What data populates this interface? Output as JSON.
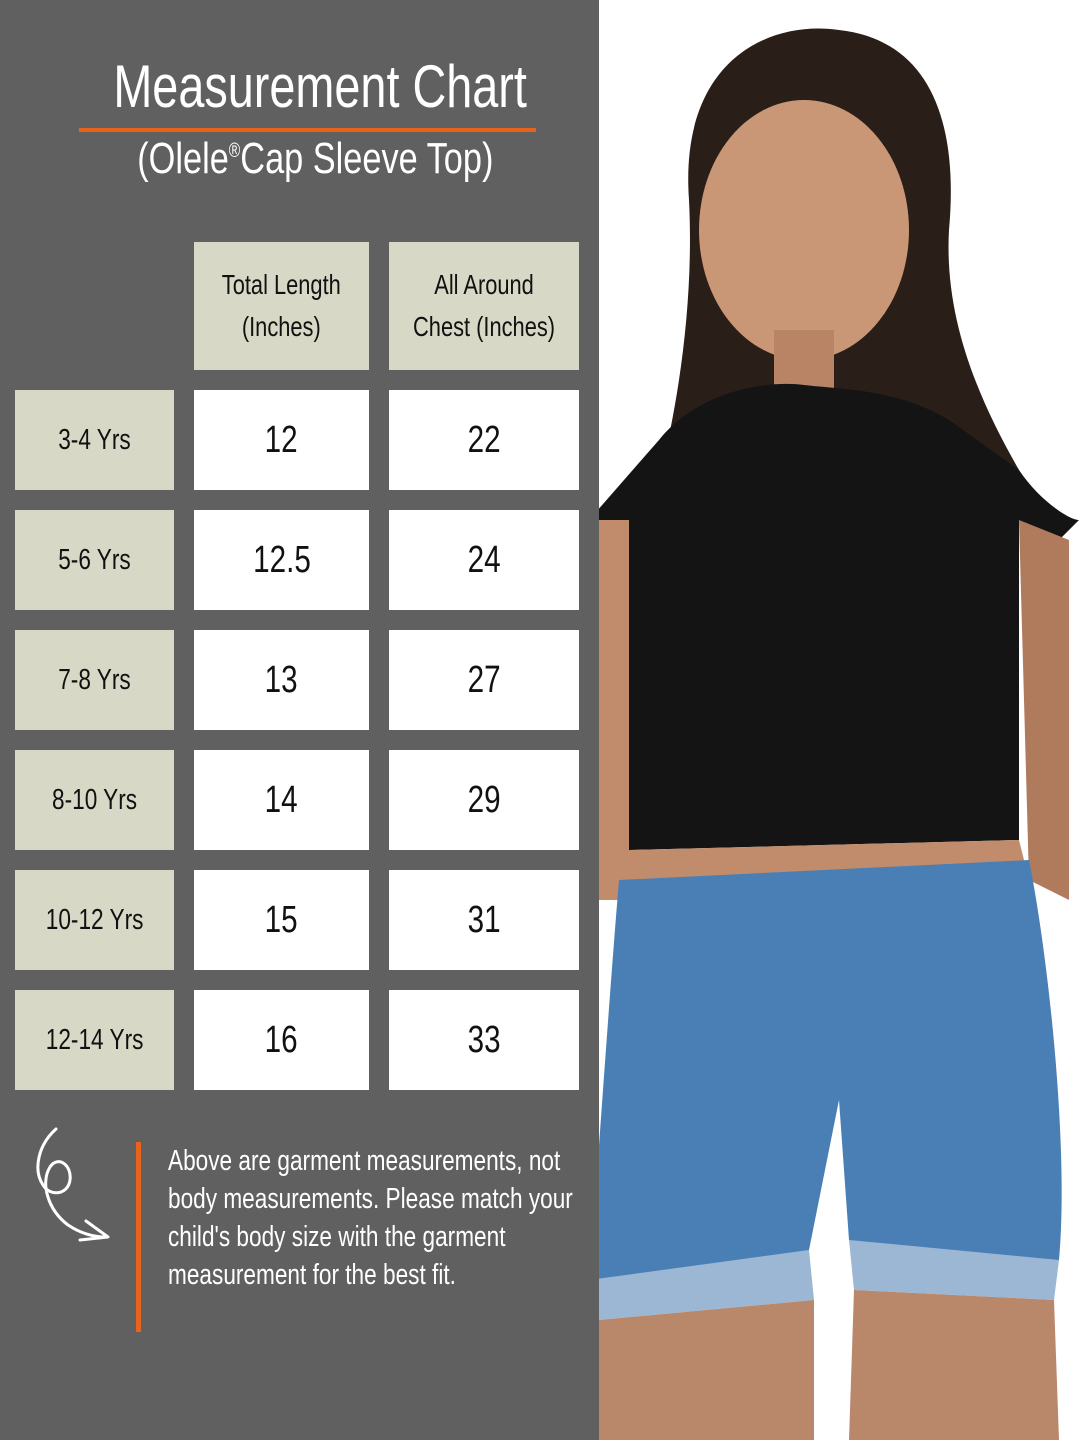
{
  "header": {
    "title": "Measurement Chart",
    "subtitle_prefix": "(Olele",
    "registered_mark": "®",
    "subtitle_suffix": "Cap Sleeve Top)"
  },
  "table": {
    "columns": [
      {
        "line1": "Total Length",
        "line2": "(Inches)"
      },
      {
        "line1": "All Around",
        "line2": "Chest (Inches)"
      }
    ],
    "rows": [
      {
        "size": "3-4 Yrs",
        "length": "12",
        "chest": "22"
      },
      {
        "size": "5-6 Yrs",
        "length": "12.5",
        "chest": "24"
      },
      {
        "size": "7-8 Yrs",
        "length": "13",
        "chest": "27"
      },
      {
        "size": "8-10 Yrs",
        "length": "14",
        "chest": "29"
      },
      {
        "size": "10-12 Yrs",
        "length": "15",
        "chest": "31"
      },
      {
        "size": "12-14 Yrs",
        "length": "16",
        "chest": "33"
      }
    ]
  },
  "note": {
    "text": "Above are garment measurements, not body measurements. Please match your child's body size with the garment measurement for the best fit.",
    "icon": "curly-arrow-icon"
  },
  "colors": {
    "panel": "#606060",
    "accent": "#e8641c",
    "header_cell": "#d8d8c6",
    "value_cell": "#ffffff"
  }
}
